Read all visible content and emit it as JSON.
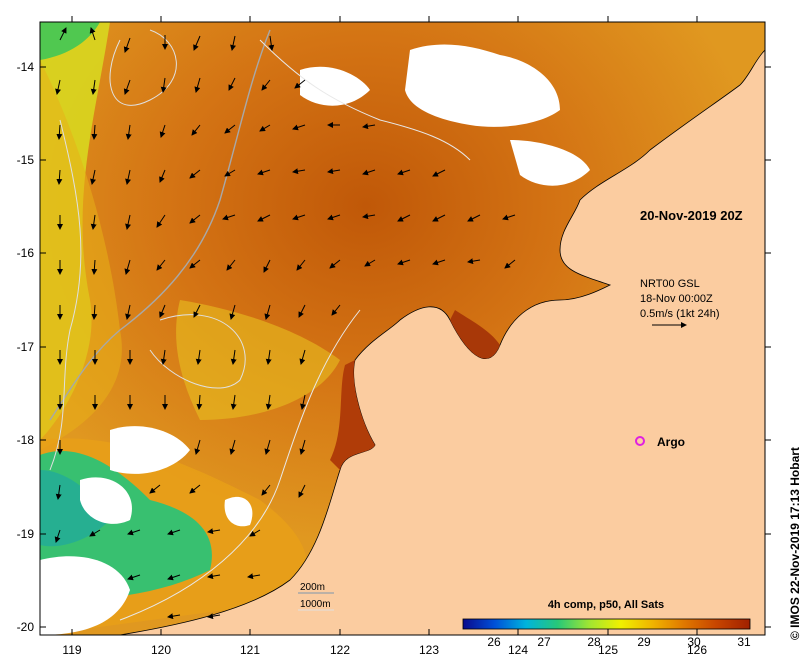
{
  "map": {
    "date_label": "20-Nov-2019 20Z",
    "legend_line1": "NRT00 GSL",
    "legend_line2": "18-Nov 00:00Z",
    "legend_line3": "0.5m/s (1kt 24h)",
    "argo_label": "Argo",
    "contour_label_1": "200m",
    "contour_label_2": "1000m",
    "credit": "© IMOS 22-Nov-2019 17:13 Hobart"
  },
  "colorbar": {
    "title": "4h comp, p50, All Sats",
    "ticks": [
      "26",
      "27",
      "28",
      "29",
      "30",
      "31"
    ],
    "stops": [
      "#0a0a8c",
      "#0050d8",
      "#00b4dc",
      "#28c878",
      "#a0e632",
      "#f0f000",
      "#f0b400",
      "#e07800",
      "#c84600",
      "#a02000"
    ]
  },
  "axes": {
    "x_ticks": [
      "119",
      "120",
      "121",
      "122",
      "123",
      "124",
      "125",
      "126"
    ],
    "y_ticks": [
      "-14",
      "-15",
      "-16",
      "-17",
      "-18",
      "-19",
      "-20"
    ]
  },
  "colors": {
    "land": "#fbcca0",
    "sea_warm": "#d06a10",
    "sea_mid": "#e89a20",
    "sea_cool": "#d8d820",
    "cloud": "#ffffff",
    "argo": "#e020e0"
  }
}
